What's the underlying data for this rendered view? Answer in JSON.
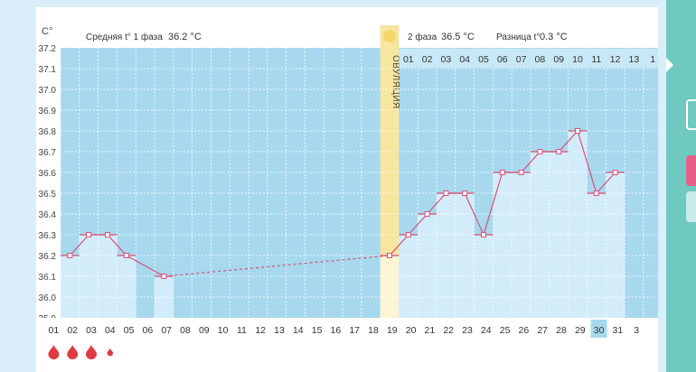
{
  "page": {
    "background": "#d9eef8",
    "sidebar_color": "#70c9c0"
  },
  "header": {
    "unit_label": "C°",
    "phase1_label": "Средняя t° 1 фаза",
    "phase1_value": "36.2 °C",
    "phase2_label": "2 фаза",
    "phase2_value": "36.5 °C",
    "diff_label": "Разница t°",
    "diff_value": "0.3 °C"
  },
  "ovulation_label": "ОВУЛЯЦИЯ",
  "chart_data": {
    "type": "line",
    "y_ticks": [
      "37.2",
      "37.1",
      "37.0",
      "36.9",
      "36.8",
      "36.7",
      "36.6",
      "36.5",
      "36.4",
      "36.3",
      "36.2",
      "36.1",
      "36.0",
      "35.9"
    ],
    "ylim": [
      35.9,
      37.2
    ],
    "x_labels": [
      "01",
      "02",
      "03",
      "04",
      "05",
      "06",
      "07",
      "08",
      "09",
      "10",
      "11",
      "12",
      "13",
      "14",
      "15",
      "16",
      "17",
      "18",
      "19",
      "20",
      "21",
      "22",
      "23",
      "24",
      "25",
      "26",
      "27",
      "28",
      "29",
      "30",
      "31",
      "3"
    ],
    "highlight_x": "30",
    "phase2_day_labels": [
      "01",
      "02",
      "03",
      "04",
      "05",
      "06",
      "07",
      "08",
      "09",
      "10",
      "11",
      "12",
      "13",
      "1"
    ],
    "ovulation_day": "18",
    "series": [
      {
        "values": [
          {
            "day": 1,
            "value": 36.2
          },
          {
            "day": 2,
            "value": 36.3
          },
          {
            "day": 3,
            "value": 36.3
          },
          {
            "day": 4,
            "value": 36.2
          },
          {
            "day": 6,
            "value": 36.1
          },
          {
            "day": 18,
            "value": 36.2
          },
          {
            "day": 19,
            "value": 36.3
          },
          {
            "day": 20,
            "value": 36.4
          },
          {
            "day": 21,
            "value": 36.5
          },
          {
            "day": 22,
            "value": 36.5
          },
          {
            "day": 23,
            "value": 36.3
          },
          {
            "day": 24,
            "value": 36.6
          },
          {
            "day": 25,
            "value": 36.6
          },
          {
            "day": 26,
            "value": 36.7
          },
          {
            "day": 27,
            "value": 36.7
          },
          {
            "day": 28,
            "value": 36.8
          },
          {
            "day": 29,
            "value": 36.5
          },
          {
            "day": 30,
            "value": 36.6
          }
        ]
      }
    ],
    "bleeding_days": [
      {
        "day": 1,
        "size": "large"
      },
      {
        "day": 2,
        "size": "large"
      },
      {
        "day": 3,
        "size": "large"
      },
      {
        "day": 4,
        "size": "small"
      }
    ],
    "colors": {
      "plot_bg": "#a7d8ee",
      "bar_fill": "#d3ecf9",
      "line": "#d9507a",
      "ovulation": "#f6e6a0",
      "ovulation_dot": "#f5d76a",
      "drop": "#e03a43",
      "highlight": "#a7d8ee"
    }
  }
}
